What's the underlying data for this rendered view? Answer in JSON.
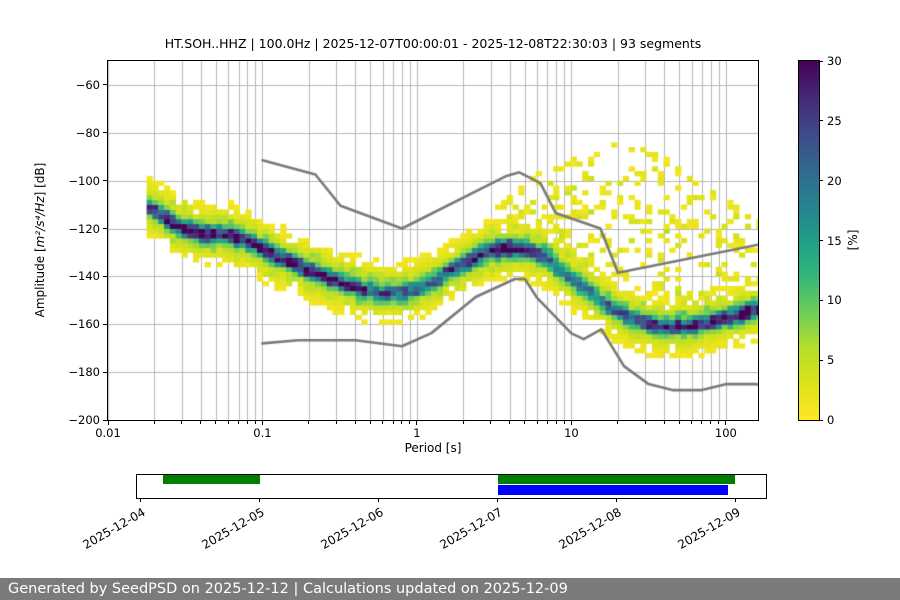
{
  "footer": {
    "text": "Generated by SeedPSD on 2025-12-12 | Calculations updated on 2025-12-09"
  },
  "timeline": {
    "axis_start": "2025-12-03T23:00:00Z",
    "axis_end": "2025-12-09T06:00:00Z",
    "ticks": [
      {
        "label": "2025-12-04",
        "date": "2025-12-04T00:00:00Z"
      },
      {
        "label": "2025-12-05",
        "date": "2025-12-05T00:00:00Z"
      },
      {
        "label": "2025-12-06",
        "date": "2025-12-06T00:00:00Z"
      },
      {
        "label": "2025-12-07",
        "date": "2025-12-07T00:00:00Z"
      },
      {
        "label": "2025-12-08",
        "date": "2025-12-08T00:00:00Z"
      },
      {
        "label": "2025-12-09",
        "date": "2025-12-09T00:00:00Z"
      }
    ],
    "bars": [
      {
        "name": "data-available-bar-1",
        "color": "#008000",
        "row": "top",
        "start": "2025-12-04T04:30:00Z",
        "end": "2025-12-05T00:00:00Z"
      },
      {
        "name": "data-available-bar-2",
        "color": "#008000",
        "row": "top",
        "start": "2025-12-07T00:00:00Z",
        "end": "2025-12-09T00:00:00Z"
      },
      {
        "name": "psd-coverage-bar",
        "color": "#0000ff",
        "row": "bottom",
        "start": "2025-12-07T00:00:00Z",
        "end": "2025-12-08T22:30:00Z"
      }
    ]
  },
  "chart_data": {
    "type": "heatmap",
    "title": "HT.SOH..HHZ | 100.0Hz | 2025-12-07T00:00:01 - 2025-12-08T22:30:03 | 93 segments",
    "xlabel": "Period [s]",
    "ylabel": "Amplitude [m²/s⁴/Hz] [dB]",
    "ylabel_parts": {
      "prefix": "Amplitude [",
      "math": "m²/s⁴/Hz",
      "suffix": "] [dB]"
    },
    "xscale": "log",
    "xlim_log10": [
      -2,
      2.208
    ],
    "ylim": [
      -200,
      -50
    ],
    "grid": true,
    "grid_color": "#b0b0b0",
    "xticks": {
      "values": [
        0.01,
        0.1,
        1,
        10,
        100
      ],
      "labels": [
        "0.01",
        "0.1",
        "1",
        "10",
        "100"
      ]
    },
    "yticks": {
      "values": [
        -60,
        -80,
        -100,
        -120,
        -140,
        -160,
        -180,
        -200
      ],
      "labels": [
        "−60",
        "−80",
        "−100",
        "−120",
        "−140",
        "−160",
        "−180",
        "−200"
      ]
    },
    "colorbar": {
      "label": "[%]",
      "min": 0,
      "max": 30,
      "ticks": [
        0,
        5,
        10,
        15,
        20,
        25,
        30
      ],
      "tick_labels": [
        "0",
        "5",
        "10",
        "15",
        "20",
        "25",
        "30"
      ],
      "colormap": "viridis_r",
      "colormap_stops": [
        [
          0.0,
          "#fde725"
        ],
        [
          0.1,
          "#dde318"
        ],
        [
          0.2,
          "#b5de2b"
        ],
        [
          0.3,
          "#6ece58"
        ],
        [
          0.4,
          "#35b779"
        ],
        [
          0.5,
          "#1f9e89"
        ],
        [
          0.6,
          "#26828e"
        ],
        [
          0.7,
          "#31688e"
        ],
        [
          0.8,
          "#3e4a89"
        ],
        [
          0.9,
          "#482878"
        ],
        [
          1.0,
          "#440154"
        ]
      ]
    },
    "cell_size": {
      "log10_period": 0.0376,
      "db": 2
    },
    "mode_curve": [
      [
        0.018,
        -111,
        16
      ],
      [
        0.022,
        -114,
        24
      ],
      [
        0.028,
        -119,
        26
      ],
      [
        0.04,
        -122,
        28
      ],
      [
        0.06,
        -122.5,
        26
      ],
      [
        0.085,
        -126,
        22
      ],
      [
        0.12,
        -131,
        24
      ],
      [
        0.18,
        -136,
        26
      ],
      [
        0.28,
        -141,
        22
      ],
      [
        0.42,
        -145,
        19
      ],
      [
        0.6,
        -147,
        18
      ],
      [
        0.85,
        -146.5,
        17
      ],
      [
        1.2,
        -143,
        17
      ],
      [
        1.8,
        -136,
        19
      ],
      [
        2.6,
        -130.5,
        24
      ],
      [
        3.6,
        -128,
        28
      ],
      [
        5.0,
        -128.5,
        26
      ],
      [
        7.0,
        -132,
        20
      ],
      [
        8.0,
        -136,
        18
      ],
      [
        10.0,
        -141,
        17
      ],
      [
        13.0,
        -146,
        16
      ],
      [
        17.0,
        -152,
        16
      ],
      [
        25.0,
        -158,
        18
      ],
      [
        38.0,
        -161,
        21
      ],
      [
        60.0,
        -160.5,
        22
      ],
      [
        90.0,
        -158,
        23
      ],
      [
        130.0,
        -155.5,
        25
      ],
      [
        166.0,
        -153.5,
        26
      ]
    ],
    "spread": {
      "core_sigma_db": 2.3,
      "broad_sigma_db": 6.8,
      "broad_peak_pct": 6
    },
    "outlier_curves": [
      {
        "pct": 2.2,
        "density": 0.55,
        "points": [
          [
            2.5,
            -119
          ],
          [
            4,
            -108
          ],
          [
            7,
            -97
          ],
          [
            12,
            -89
          ],
          [
            20,
            -85
          ],
          [
            30,
            -87
          ],
          [
            50,
            -96
          ],
          [
            80,
            -105
          ],
          [
            130,
            -114
          ],
          [
            166,
            -119
          ]
        ]
      },
      {
        "pct": 2.0,
        "density": 0.5,
        "points": [
          [
            2.5,
            -124
          ],
          [
            4,
            -115
          ],
          [
            7,
            -107
          ],
          [
            10,
            -104
          ],
          [
            15,
            -104
          ],
          [
            22,
            -108
          ],
          [
            35,
            -113
          ],
          [
            60,
            -118
          ],
          [
            100,
            -123
          ],
          [
            166,
            -128
          ]
        ]
      },
      {
        "pct": 1.8,
        "density": 0.45,
        "points": [
          [
            3,
            -128
          ],
          [
            5,
            -121
          ],
          [
            8,
            -115
          ],
          [
            12,
            -112
          ],
          [
            18,
            -113
          ],
          [
            28,
            -117
          ],
          [
            45,
            -121
          ],
          [
            75,
            -125
          ],
          [
            120,
            -129
          ],
          [
            166,
            -131
          ]
        ]
      },
      {
        "pct": 2.2,
        "density": 0.5,
        "points": [
          [
            0.02,
            -107
          ],
          [
            0.04,
            -112
          ],
          [
            0.08,
            -120
          ],
          [
            0.15,
            -127
          ],
          [
            0.3,
            -134
          ],
          [
            0.6,
            -141
          ],
          [
            1,
            -141
          ],
          [
            2,
            -135
          ],
          [
            4,
            -125
          ],
          [
            8,
            -121
          ],
          [
            15,
            -124
          ],
          [
            30,
            -130
          ],
          [
            60,
            -136
          ],
          [
            120,
            -141
          ],
          [
            166,
            -143
          ]
        ]
      },
      {
        "pct": 2.0,
        "density": 0.5,
        "points": [
          [
            0.025,
            -125
          ],
          [
            0.05,
            -129
          ],
          [
            0.1,
            -138
          ],
          [
            0.3,
            -149
          ],
          [
            0.6,
            -153
          ],
          [
            1.2,
            -150
          ],
          [
            2.5,
            -140
          ],
          [
            5,
            -133
          ]
        ]
      },
      {
        "pct": 1.8,
        "density": 0.45,
        "points": [
          [
            0.1,
            -132
          ],
          [
            0.2,
            -140
          ],
          [
            0.5,
            -150
          ],
          [
            1,
            -148
          ],
          [
            2,
            -139
          ],
          [
            4,
            -131
          ]
        ]
      },
      {
        "pct": 2.0,
        "density": 0.45,
        "points": [
          [
            6,
            -127
          ],
          [
            10,
            -130
          ],
          [
            18,
            -136
          ],
          [
            30,
            -142
          ],
          [
            60,
            -148
          ],
          [
            120,
            -152
          ],
          [
            166,
            -153
          ]
        ]
      },
      {
        "pct": 1.6,
        "density": 0.4,
        "points": [
          [
            5,
            -97
          ],
          [
            7,
            -100
          ],
          [
            10,
            -106
          ],
          [
            16,
            -112
          ],
          [
            26,
            -118
          ],
          [
            40,
            -124
          ]
        ]
      }
    ],
    "diffuse_cloud": {
      "log10_period_range": [
        0.45,
        2.2
      ],
      "pct_range": [
        1,
        3.5
      ],
      "density": 0.18
    },
    "noise_models": {
      "color": "#7a7a7a",
      "nhnm": [
        [
          0.1,
          -91.5
        ],
        [
          0.22,
          -97.4
        ],
        [
          0.32,
          -110.5
        ],
        [
          0.8,
          -120.0
        ],
        [
          3.8,
          -98.0
        ],
        [
          4.6,
          -96.5
        ],
        [
          6.3,
          -101.0
        ],
        [
          7.9,
          -113.5
        ],
        [
          15.4,
          -120.0
        ],
        [
          20.0,
          -138.5
        ],
        [
          170.0,
          -126.5
        ]
      ],
      "nlnm": [
        [
          0.1,
          -168.0
        ],
        [
          0.17,
          -166.7
        ],
        [
          0.4,
          -166.7
        ],
        [
          0.8,
          -169.2
        ],
        [
          1.24,
          -163.7
        ],
        [
          2.4,
          -148.6
        ],
        [
          4.3,
          -141.1
        ],
        [
          5.0,
          -141.1
        ],
        [
          6.0,
          -149.0
        ],
        [
          10.0,
          -163.8
        ],
        [
          12.0,
          -166.2
        ],
        [
          15.6,
          -162.1
        ],
        [
          21.9,
          -177.5
        ],
        [
          31.6,
          -185.0
        ],
        [
          45.0,
          -187.5
        ],
        [
          70.0,
          -187.5
        ],
        [
          101.0,
          -185.0
        ],
        [
          154.0,
          -185.0
        ],
        [
          170.0,
          -185.3
        ]
      ]
    }
  }
}
